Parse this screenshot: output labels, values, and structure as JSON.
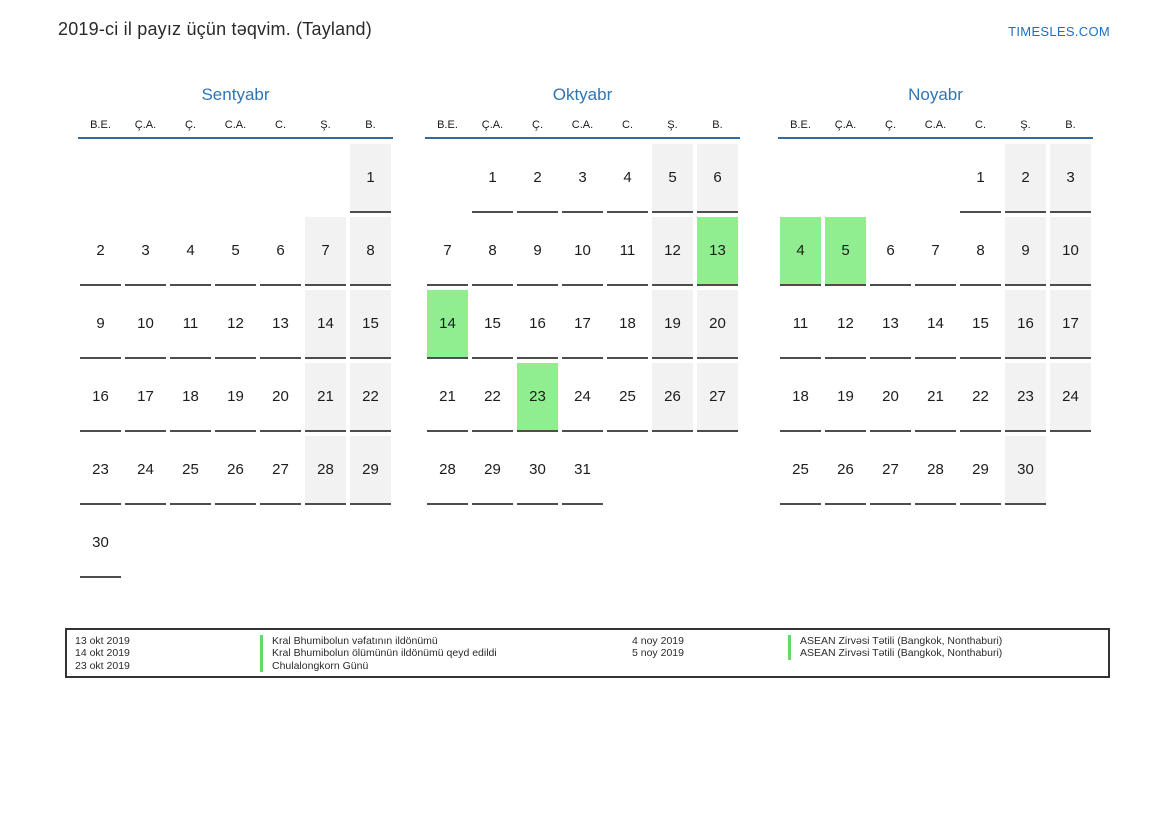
{
  "page": {
    "title": "2019-ci il payız üçün təqvim. (Tayland)",
    "site_link": "TIMESLES.COM"
  },
  "colors": {
    "month_title_blue": "#2e75b6",
    "link_blue": "#1a6fc9",
    "header_line_blue": "#2e6da4",
    "weekend_bg": "#f2f2f2",
    "holiday_bg": "#90ee90",
    "legend_bar_green": "#66d966",
    "cell_underline": "#4d4d4d"
  },
  "weekday_labels": [
    "B.E.",
    "Ç.A.",
    "Ç.",
    "C.A.",
    "C.",
    "Ş.",
    "B."
  ],
  "months": [
    {
      "id": "sentyabr",
      "name": "Sentyabr",
      "weeks": [
        [
          null,
          null,
          null,
          null,
          null,
          null,
          {
            "d": "1",
            "s": "we"
          }
        ],
        [
          {
            "d": "2"
          },
          {
            "d": "3"
          },
          {
            "d": "4"
          },
          {
            "d": "5"
          },
          {
            "d": "6"
          },
          {
            "d": "7",
            "s": "we"
          },
          {
            "d": "8",
            "s": "we"
          }
        ],
        [
          {
            "d": "9"
          },
          {
            "d": "10"
          },
          {
            "d": "11"
          },
          {
            "d": "12"
          },
          {
            "d": "13"
          },
          {
            "d": "14",
            "s": "we"
          },
          {
            "d": "15",
            "s": "we"
          }
        ],
        [
          {
            "d": "16"
          },
          {
            "d": "17"
          },
          {
            "d": "18"
          },
          {
            "d": "19"
          },
          {
            "d": "20"
          },
          {
            "d": "21",
            "s": "we"
          },
          {
            "d": "22",
            "s": "we"
          }
        ],
        [
          {
            "d": "23"
          },
          {
            "d": "24"
          },
          {
            "d": "25"
          },
          {
            "d": "26"
          },
          {
            "d": "27"
          },
          {
            "d": "28",
            "s": "we"
          },
          {
            "d": "29",
            "s": "we"
          }
        ],
        [
          {
            "d": "30"
          },
          null,
          null,
          null,
          null,
          null,
          null
        ]
      ]
    },
    {
      "id": "oktyabr",
      "name": "Oktyabr",
      "weeks": [
        [
          null,
          {
            "d": "1"
          },
          {
            "d": "2"
          },
          {
            "d": "3"
          },
          {
            "d": "4"
          },
          {
            "d": "5",
            "s": "we"
          },
          {
            "d": "6",
            "s": "we"
          }
        ],
        [
          {
            "d": "7"
          },
          {
            "d": "8"
          },
          {
            "d": "9"
          },
          {
            "d": "10"
          },
          {
            "d": "11"
          },
          {
            "d": "12",
            "s": "we"
          },
          {
            "d": "13",
            "s": "hl"
          }
        ],
        [
          {
            "d": "14",
            "s": "hl"
          },
          {
            "d": "15"
          },
          {
            "d": "16"
          },
          {
            "d": "17"
          },
          {
            "d": "18"
          },
          {
            "d": "19",
            "s": "we"
          },
          {
            "d": "20",
            "s": "we"
          }
        ],
        [
          {
            "d": "21"
          },
          {
            "d": "22"
          },
          {
            "d": "23",
            "s": "hl"
          },
          {
            "d": "24"
          },
          {
            "d": "25"
          },
          {
            "d": "26",
            "s": "we"
          },
          {
            "d": "27",
            "s": "we"
          }
        ],
        [
          {
            "d": "28"
          },
          {
            "d": "29"
          },
          {
            "d": "30"
          },
          {
            "d": "31"
          },
          null,
          null,
          null
        ]
      ]
    },
    {
      "id": "noyabr",
      "name": "Noyabr",
      "weeks": [
        [
          null,
          null,
          null,
          null,
          {
            "d": "1"
          },
          {
            "d": "2",
            "s": "we"
          },
          {
            "d": "3",
            "s": "we"
          }
        ],
        [
          {
            "d": "4",
            "s": "hl"
          },
          {
            "d": "5",
            "s": "hl"
          },
          {
            "d": "6"
          },
          {
            "d": "7"
          },
          {
            "d": "8"
          },
          {
            "d": "9",
            "s": "we"
          },
          {
            "d": "10",
            "s": "we"
          }
        ],
        [
          {
            "d": "11"
          },
          {
            "d": "12"
          },
          {
            "d": "13"
          },
          {
            "d": "14"
          },
          {
            "d": "15"
          },
          {
            "d": "16",
            "s": "we"
          },
          {
            "d": "17",
            "s": "we"
          }
        ],
        [
          {
            "d": "18"
          },
          {
            "d": "19"
          },
          {
            "d": "20"
          },
          {
            "d": "21"
          },
          {
            "d": "22"
          },
          {
            "d": "23",
            "s": "we"
          },
          {
            "d": "24",
            "s": "we"
          }
        ],
        [
          {
            "d": "25"
          },
          {
            "d": "26"
          },
          {
            "d": "27"
          },
          {
            "d": "28"
          },
          {
            "d": "29"
          },
          {
            "d": "30",
            "s": "we"
          },
          null
        ]
      ]
    }
  ],
  "legend": {
    "left": [
      {
        "date": "13 okt 2019",
        "desc": "Kral Bhumibolun vəfatının ildönümü"
      },
      {
        "date": "14 okt 2019",
        "desc": "Kral Bhumibolun ölümünün ildönümü qeyd edildi"
      },
      {
        "date": "23 okt 2019",
        "desc": "Chulalongkorn Günü"
      }
    ],
    "right": [
      {
        "date": "4 noy 2019",
        "desc": "ASEAN Zirvəsi Tətili (Bangkok, Nonthaburi)"
      },
      {
        "date": "5 noy 2019",
        "desc": "ASEAN Zirvəsi Tətili (Bangkok, Nonthaburi)"
      }
    ]
  }
}
